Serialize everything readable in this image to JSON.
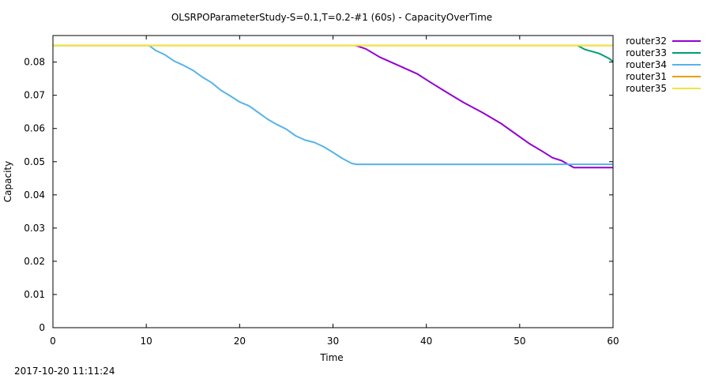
{
  "timestamp": "2017-10-20 11:11:24",
  "chart_data": {
    "type": "line",
    "title": "OLSRPOParameterStudy-S=0.1,T=0.2-#1 (60s) - CapacityOverTime",
    "xlabel": "Time",
    "ylabel": "Capacity",
    "xlim": [
      0,
      60
    ],
    "ylim": [
      0,
      0.088
    ],
    "xticks": [
      0,
      10,
      20,
      30,
      40,
      50,
      60
    ],
    "yticks": [
      0,
      0.01,
      0.02,
      0.03,
      0.04,
      0.05,
      0.06,
      0.07,
      0.08
    ],
    "xtick_labels": [
      "0",
      "10",
      "20",
      "30",
      "40",
      "50",
      "60"
    ],
    "ytick_labels": [
      "0",
      "0.01",
      "0.02",
      "0.03",
      "0.04",
      "0.05",
      "0.06",
      "0.07",
      "0.08"
    ],
    "grid": false,
    "legend_position": "outside-top-right",
    "series": [
      {
        "name": "router32",
        "color": "#9400d3",
        "points": [
          [
            32.4,
            0.085
          ],
          [
            33.5,
            0.084
          ],
          [
            35,
            0.0815
          ],
          [
            37,
            0.079
          ],
          [
            39,
            0.0765
          ],
          [
            40.5,
            0.0738
          ],
          [
            42,
            0.0712
          ],
          [
            44,
            0.0678
          ],
          [
            46,
            0.0648
          ],
          [
            48,
            0.0615
          ],
          [
            49.5,
            0.0585
          ],
          [
            51,
            0.0555
          ],
          [
            52.5,
            0.053
          ],
          [
            53.5,
            0.0512
          ],
          [
            54.5,
            0.0503
          ],
          [
            55.3,
            0.049
          ],
          [
            55.8,
            0.0482
          ],
          [
            60,
            0.0482
          ]
        ]
      },
      {
        "name": "router33",
        "color": "#009e73",
        "points": [
          [
            56.2,
            0.085
          ],
          [
            57,
            0.0838
          ],
          [
            58.5,
            0.0826
          ],
          [
            59.5,
            0.0812
          ],
          [
            60,
            0.0802
          ]
        ]
      },
      {
        "name": "router34",
        "color": "#56b4e9",
        "points": [
          [
            0,
            0.085
          ],
          [
            10.3,
            0.085
          ],
          [
            11,
            0.0835
          ],
          [
            12,
            0.0822
          ],
          [
            13,
            0.0803
          ],
          [
            14,
            0.079
          ],
          [
            15,
            0.0775
          ],
          [
            16,
            0.0755
          ],
          [
            17,
            0.0738
          ],
          [
            18,
            0.0715
          ],
          [
            19,
            0.0698
          ],
          [
            20,
            0.068
          ],
          [
            21,
            0.0668
          ],
          [
            22,
            0.0648
          ],
          [
            23,
            0.0628
          ],
          [
            24,
            0.0612
          ],
          [
            25,
            0.0598
          ],
          [
            26,
            0.0578
          ],
          [
            27,
            0.0565
          ],
          [
            28,
            0.0558
          ],
          [
            29,
            0.0545
          ],
          [
            30,
            0.0528
          ],
          [
            31,
            0.051
          ],
          [
            32,
            0.0495
          ],
          [
            32.5,
            0.0492
          ],
          [
            60,
            0.0492
          ]
        ]
      },
      {
        "name": "router31",
        "color": "#e69f00",
        "points": [
          [
            0,
            0.085
          ],
          [
            60,
            0.085
          ]
        ]
      },
      {
        "name": "router35",
        "color": "#f0e442",
        "points": [
          [
            0,
            0.085
          ],
          [
            60,
            0.085
          ]
        ]
      }
    ]
  }
}
